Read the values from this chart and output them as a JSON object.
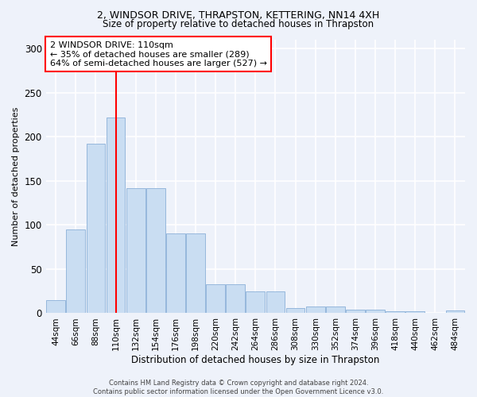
{
  "title1": "2, WINDSOR DRIVE, THRAPSTON, KETTERING, NN14 4XH",
  "title2": "Size of property relative to detached houses in Thrapston",
  "xlabel": "Distribution of detached houses by size in Thrapston",
  "ylabel": "Number of detached properties",
  "categories": [
    "44sqm",
    "66sqm",
    "88sqm",
    "110sqm",
    "132sqm",
    "154sqm",
    "176sqm",
    "198sqm",
    "220sqm",
    "242sqm",
    "264sqm",
    "286sqm",
    "308sqm",
    "330sqm",
    "352sqm",
    "374sqm",
    "396sqm",
    "418sqm",
    "440sqm",
    "462sqm",
    "484sqm"
  ],
  "values": [
    15,
    95,
    192,
    222,
    142,
    142,
    90,
    90,
    33,
    33,
    25,
    25,
    6,
    8,
    8,
    4,
    4,
    2,
    2,
    0,
    3
  ],
  "bar_color": "#c9ddf2",
  "bar_edge_color": "#8ab0d8",
  "vline_x_index": 3,
  "vline_color": "red",
  "annotation_text": "2 WINDSOR DRIVE: 110sqm\n← 35% of detached houses are smaller (289)\n64% of semi-detached houses are larger (527) →",
  "annotation_box_color": "white",
  "annotation_box_edge": "red",
  "footer": "Contains HM Land Registry data © Crown copyright and database right 2024.\nContains public sector information licensed under the Open Government Licence v3.0.",
  "ylim": [
    0,
    310
  ],
  "yticks": [
    0,
    50,
    100,
    150,
    200,
    250,
    300
  ],
  "background_color": "#eef2fa",
  "grid_color": "white",
  "title1_fontsize": 9,
  "title2_fontsize": 8.5
}
